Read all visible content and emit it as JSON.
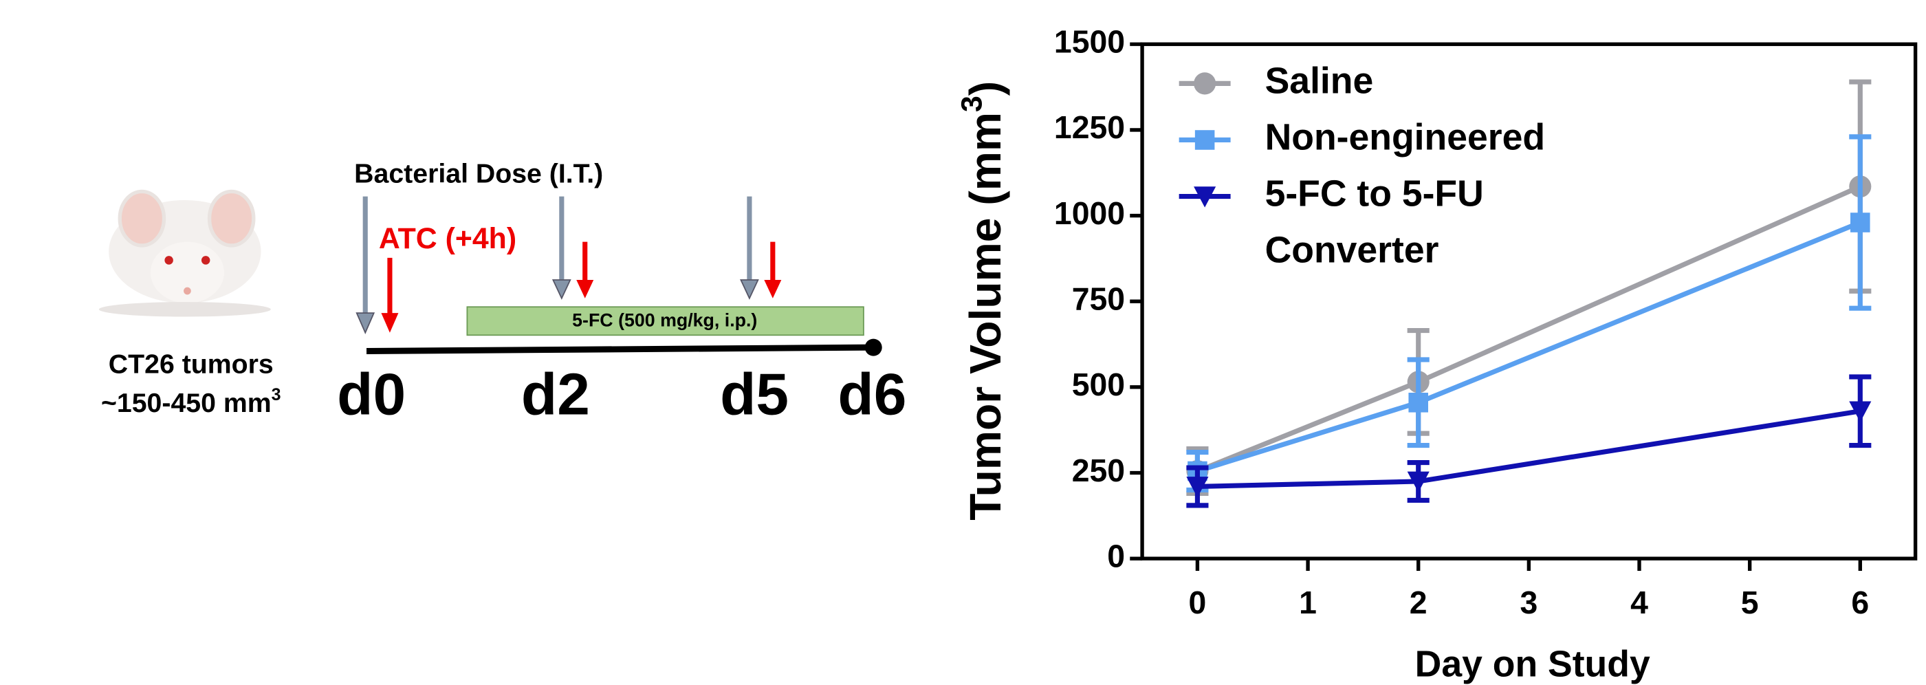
{
  "diagram": {
    "dose_label": "Bacterial Dose (I.T.)",
    "atc_label": "ATC (+4h)",
    "drug_label": "5-FC (500 mg/kg, i.p.)",
    "tumor_line1": "CT26 tumors",
    "tumor_line2": "~150-450 mm",
    "tumor_line2_sup": "3",
    "days": [
      "d0",
      "d2",
      "d5",
      "d6"
    ]
  },
  "chart_data": {
    "type": "line",
    "xlabel": "Day on Study",
    "ylabel": "Tumor Volume (mm",
    "ylabel_sup": "3",
    "ylabel_end": ")",
    "x": [
      0,
      2,
      6
    ],
    "series": [
      {
        "name": "Saline",
        "color": "#a0a0a6",
        "marker": "circle",
        "values": [
          255,
          515,
          1085
        ],
        "errors": [
          65,
          150,
          305
        ]
      },
      {
        "name": "Non-engineered",
        "color": "#5aa0f0",
        "marker": "square",
        "values": [
          255,
          455,
          980
        ],
        "errors": [
          55,
          125,
          250
        ]
      },
      {
        "name": "5-FC to 5-FU Converter",
        "color": "#1010b0",
        "marker": "triangle-down",
        "values": [
          210,
          225,
          430
        ],
        "errors": [
          55,
          55,
          100
        ]
      }
    ],
    "xlim": [
      -0.5,
      6.5
    ],
    "xticks": [
      0,
      1,
      2,
      3,
      4,
      5,
      6
    ],
    "ylim": [
      0,
      1500
    ],
    "yticks": [
      0,
      250,
      500,
      750,
      1000,
      1250,
      1500
    ],
    "grid": false,
    "legend": "upper left"
  }
}
